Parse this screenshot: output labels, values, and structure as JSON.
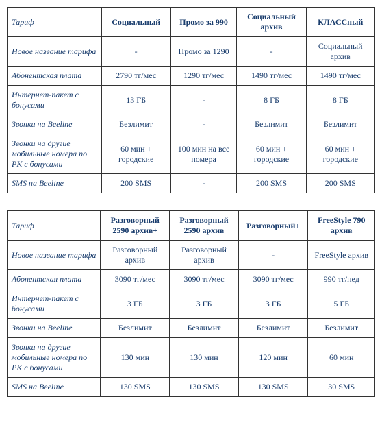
{
  "colors": {
    "text": "#1a3d6d",
    "border": "#333333",
    "background": "#ffffff"
  },
  "typography": {
    "font_family": "Georgia, Times New Roman, serif",
    "cell_fontsize": 12,
    "row_label_style": "italic",
    "header_weight": "bold"
  },
  "table1": {
    "header": [
      "Тариф",
      "Социальный",
      "Промо за 990",
      "Социальный архив",
      "КЛАССный"
    ],
    "rows": [
      {
        "label": "Новое название тарифа",
        "cells": [
          "-",
          "Промо за 1290",
          "-",
          "Социальный архив"
        ]
      },
      {
        "label": "Абонентская плата",
        "cells": [
          "2790 тг/мес",
          "1290 тг/мес",
          "1490 тг/мес",
          "1490 тг/мес"
        ]
      },
      {
        "label": "Интернет-пакет с бонусами",
        "cells": [
          "13 ГБ",
          "-",
          "8 ГБ",
          "8 ГБ"
        ]
      },
      {
        "label": "Звонки на Beeline",
        "cells": [
          "Безлимит",
          "-",
          "Безлимит",
          "Безлимит"
        ]
      },
      {
        "label": "Звонки на другие мобильные номера по РК с бонусами",
        "cells": [
          "60 мин + городские",
          "100 мин на все номера",
          "60 мин + городские",
          "60 мин + городские"
        ]
      },
      {
        "label": "SMS на Beeline",
        "cells": [
          "200 SMS",
          "-",
          "200 SMS",
          "200 SMS"
        ]
      }
    ]
  },
  "table2": {
    "header": [
      "Тариф",
      "Разговорный 2590 архив+",
      "Разговорный 2590 архив",
      "Разговорный+",
      "FreeStyle 790 архив"
    ],
    "rows": [
      {
        "label": "Новое название тарифа",
        "cells": [
          "Разговорный архив",
          "Разговорный архив",
          "-",
          "FreeStyle архив"
        ]
      },
      {
        "label": "Абонентская плата",
        "cells": [
          "3090 тг/мес",
          "3090 тг/мес",
          "3090 тг/мес",
          "990 тг/нед"
        ]
      },
      {
        "label": "Интернет-пакет с бонусами",
        "cells": [
          "3 ГБ",
          "3 ГБ",
          "3 ГБ",
          "5 ГБ"
        ]
      },
      {
        "label": "Звонки на Beeline",
        "cells": [
          "Безлимит",
          "Безлимит",
          "Безлимит",
          "Безлимит"
        ]
      },
      {
        "label": "Звонки на другие мобильные номера по РК с бонусами",
        "cells": [
          "130 мин",
          "130 мин",
          "120 мин",
          "60 мин"
        ]
      },
      {
        "label": "SMS на Beeline",
        "cells": [
          "130 SMS",
          "130 SMS",
          "130 SMS",
          "30 SMS"
        ]
      }
    ]
  }
}
